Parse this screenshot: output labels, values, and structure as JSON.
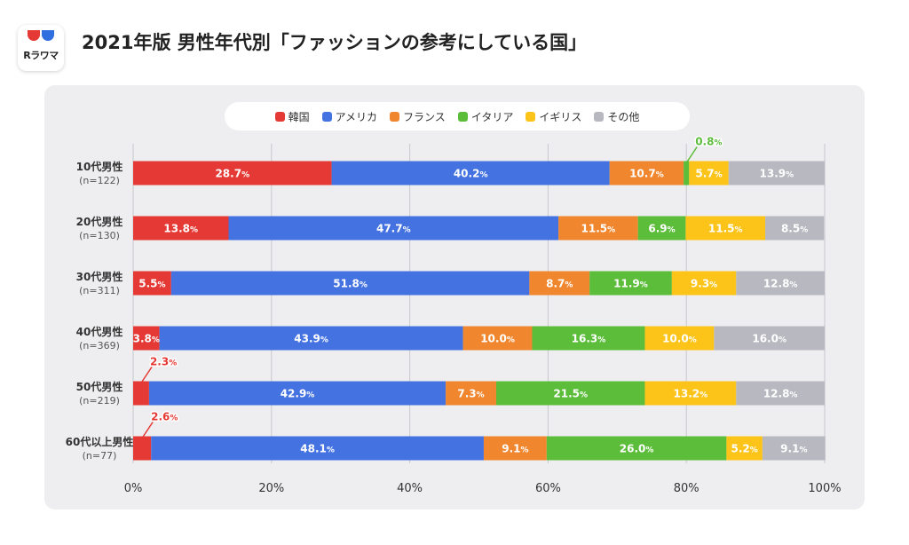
{
  "header": {
    "logo_text": "Rラワマ",
    "title": "2021年版 男性年代別「ファッションの参考にしている国」"
  },
  "colors": {
    "韓国": "#e53935",
    "アメリカ": "#4472e0",
    "フランス": "#f0862e",
    "イタリア": "#5cbd3a",
    "イギリス": "#fcc419",
    "その他": "#b8b8c0"
  },
  "chart_data": {
    "type": "bar",
    "orientation": "horizontal",
    "stacked": true,
    "categories": [
      {
        "name": "10代男性",
        "n": "(n=122)"
      },
      {
        "name": "20代男性",
        "n": "(n=130)"
      },
      {
        "name": "30代男性",
        "n": "(n=311)"
      },
      {
        "name": "40代男性",
        "n": "(n=369)"
      },
      {
        "name": "50代男性",
        "n": "(n=219)"
      },
      {
        "name": "60代以上男性",
        "n": "(n=77)"
      }
    ],
    "series": [
      {
        "name": "韓国",
        "values": [
          28.7,
          13.8,
          5.5,
          3.8,
          2.3,
          2.6
        ]
      },
      {
        "name": "アメリカ",
        "values": [
          40.2,
          47.7,
          51.8,
          43.9,
          42.9,
          48.1
        ]
      },
      {
        "name": "フランス",
        "values": [
          10.7,
          11.5,
          8.7,
          10.0,
          7.3,
          9.1
        ]
      },
      {
        "name": "イタリア",
        "values": [
          0.8,
          6.9,
          11.9,
          16.3,
          21.5,
          26.0
        ]
      },
      {
        "name": "イギリス",
        "values": [
          5.7,
          11.5,
          9.3,
          10.0,
          13.2,
          5.2
        ]
      },
      {
        "name": "その他",
        "values": [
          13.9,
          8.5,
          12.8,
          16.0,
          12.8,
          9.1
        ]
      }
    ],
    "xlim": [
      0,
      100
    ],
    "xticks": [
      "0%",
      "20%",
      "40%",
      "60%",
      "80%",
      "100%"
    ],
    "grid": true,
    "legend_position": "top"
  }
}
